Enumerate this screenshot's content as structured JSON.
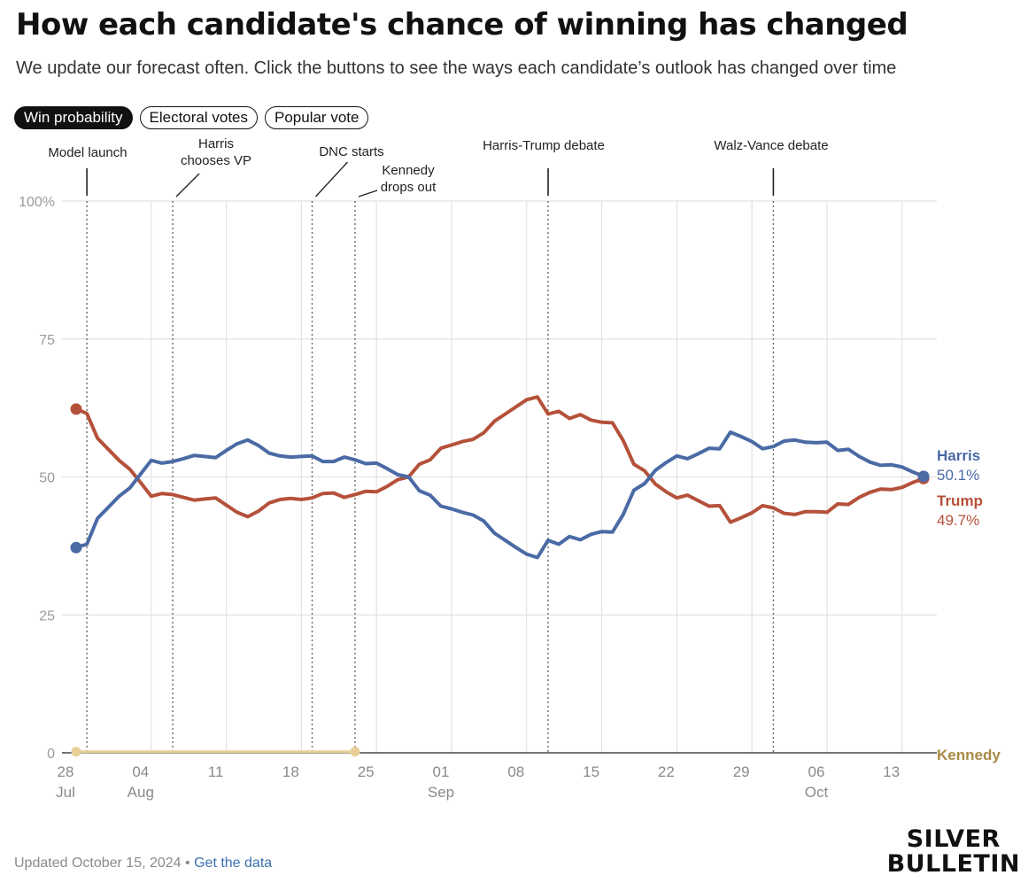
{
  "title": "How each candidate's chance of winning has changed",
  "subtitle": "We update our forecast often. Click the buttons to see the ways each candidate’s outlook has changed over time",
  "tabs": [
    {
      "label": "Win probability",
      "active": true
    },
    {
      "label": "Electoral votes",
      "active": false
    },
    {
      "label": "Popular vote",
      "active": false
    }
  ],
  "footer": {
    "updated": "Updated October 15, 2024",
    "separator": "•",
    "link": "Get the data"
  },
  "brand": {
    "line1": "SILVER",
    "line2": "BULLETIN"
  },
  "colors": {
    "harris": "#4a6aa5",
    "trump": "#b5513a",
    "kennedy": "#a88a45",
    "kennedy_line": "#e9cf96",
    "grid": "#e2e2e2",
    "axis_text": "#9a9a9a"
  },
  "chart_data": {
    "type": "line",
    "x_start": "2024-07-28",
    "x_end": "2024-10-15",
    "ylim": [
      0,
      100
    ],
    "y_ticks": [
      {
        "value": 0,
        "label": "0"
      },
      {
        "value": 25,
        "label": "25"
      },
      {
        "value": 50,
        "label": "50"
      },
      {
        "value": 75,
        "label": "75"
      },
      {
        "value": 100,
        "label": "100%"
      }
    ],
    "x_ticks": [
      {
        "date": "2024-07-28",
        "label": "28",
        "sublabel": "Jul"
      },
      {
        "date": "2024-08-04",
        "label": "04",
        "sublabel": "Aug"
      },
      {
        "date": "2024-08-11",
        "label": "11",
        "sublabel": ""
      },
      {
        "date": "2024-08-18",
        "label": "18",
        "sublabel": ""
      },
      {
        "date": "2024-08-25",
        "label": "25",
        "sublabel": ""
      },
      {
        "date": "2024-09-01",
        "label": "01",
        "sublabel": "Sep"
      },
      {
        "date": "2024-09-08",
        "label": "08",
        "sublabel": ""
      },
      {
        "date": "2024-09-15",
        "label": "15",
        "sublabel": ""
      },
      {
        "date": "2024-09-22",
        "label": "22",
        "sublabel": ""
      },
      {
        "date": "2024-09-29",
        "label": "29",
        "sublabel": ""
      },
      {
        "date": "2024-10-06",
        "label": "06",
        "sublabel": "Oct"
      },
      {
        "date": "2024-10-13",
        "label": "13",
        "sublabel": ""
      }
    ],
    "events": [
      {
        "date": "2024-07-29",
        "label": [
          "Model launch"
        ]
      },
      {
        "date": "2024-08-06",
        "label": [
          "Harris",
          "chooses VP"
        ]
      },
      {
        "date": "2024-08-19",
        "label": [
          "DNC starts"
        ]
      },
      {
        "date": "2024-08-23",
        "label": [
          "Kennedy",
          "drops out"
        ]
      },
      {
        "date": "2024-09-10",
        "label": [
          "Harris-Trump debate"
        ]
      },
      {
        "date": "2024-10-01",
        "label": [
          "Walz-Vance debate"
        ]
      }
    ],
    "series": [
      {
        "name": "Harris",
        "end_label": "50.1%",
        "points": [
          [
            "2024-07-28",
            37.2
          ],
          [
            "2024-07-29",
            37.8
          ],
          [
            "2024-07-30",
            42.5
          ],
          [
            "2024-07-31",
            44.5
          ],
          [
            "2024-08-01",
            46.5
          ],
          [
            "2024-08-02",
            48.0
          ],
          [
            "2024-08-03",
            50.5
          ],
          [
            "2024-08-04",
            53.0
          ],
          [
            "2024-08-05",
            52.5
          ],
          [
            "2024-08-06",
            52.8
          ],
          [
            "2024-08-07",
            53.3
          ],
          [
            "2024-08-08",
            53.9
          ],
          [
            "2024-08-09",
            53.7
          ],
          [
            "2024-08-10",
            53.5
          ],
          [
            "2024-08-11",
            54.8
          ],
          [
            "2024-08-12",
            56.0
          ],
          [
            "2024-08-13",
            56.7
          ],
          [
            "2024-08-14",
            55.7
          ],
          [
            "2024-08-15",
            54.3
          ],
          [
            "2024-08-16",
            53.8
          ],
          [
            "2024-08-17",
            53.6
          ],
          [
            "2024-08-18",
            53.7
          ],
          [
            "2024-08-19",
            53.8
          ],
          [
            "2024-08-20",
            52.8
          ],
          [
            "2024-08-21",
            52.8
          ],
          [
            "2024-08-22",
            53.6
          ],
          [
            "2024-08-23",
            53.1
          ],
          [
            "2024-08-24",
            52.4
          ],
          [
            "2024-08-25",
            52.5
          ],
          [
            "2024-08-26",
            51.5
          ],
          [
            "2024-08-27",
            50.4
          ],
          [
            "2024-08-28",
            50.0
          ],
          [
            "2024-08-29",
            47.5
          ],
          [
            "2024-08-30",
            46.7
          ],
          [
            "2024-08-31",
            44.7
          ],
          [
            "2024-09-01",
            44.2
          ],
          [
            "2024-09-02",
            43.6
          ],
          [
            "2024-09-03",
            43.1
          ],
          [
            "2024-09-04",
            42.0
          ],
          [
            "2024-09-05",
            39.8
          ],
          [
            "2024-09-06",
            38.5
          ],
          [
            "2024-09-07",
            37.2
          ],
          [
            "2024-09-08",
            36.0
          ],
          [
            "2024-09-09",
            35.4
          ],
          [
            "2024-09-10",
            38.5
          ],
          [
            "2024-09-11",
            37.8
          ],
          [
            "2024-09-12",
            39.2
          ],
          [
            "2024-09-13",
            38.6
          ],
          [
            "2024-09-14",
            39.6
          ],
          [
            "2024-09-15",
            40.1
          ],
          [
            "2024-09-16",
            40.0
          ],
          [
            "2024-09-17",
            43.2
          ],
          [
            "2024-09-18",
            47.6
          ],
          [
            "2024-09-19",
            48.8
          ],
          [
            "2024-09-20",
            51.2
          ],
          [
            "2024-09-21",
            52.6
          ],
          [
            "2024-09-22",
            53.8
          ],
          [
            "2024-09-23",
            53.3
          ],
          [
            "2024-09-24",
            54.2
          ],
          [
            "2024-09-25",
            55.2
          ],
          [
            "2024-09-26",
            55.1
          ],
          [
            "2024-09-27",
            58.1
          ],
          [
            "2024-09-28",
            57.3
          ],
          [
            "2024-09-29",
            56.4
          ],
          [
            "2024-09-30",
            55.1
          ],
          [
            "2024-10-01",
            55.5
          ],
          [
            "2024-10-02",
            56.5
          ],
          [
            "2024-10-03",
            56.7
          ],
          [
            "2024-10-04",
            56.3
          ],
          [
            "2024-10-05",
            56.2
          ],
          [
            "2024-10-06",
            56.3
          ],
          [
            "2024-10-07",
            54.8
          ],
          [
            "2024-10-08",
            55.0
          ],
          [
            "2024-10-09",
            53.7
          ],
          [
            "2024-10-10",
            52.7
          ],
          [
            "2024-10-11",
            52.1
          ],
          [
            "2024-10-12",
            52.2
          ],
          [
            "2024-10-13",
            51.8
          ],
          [
            "2024-10-14",
            50.9
          ],
          [
            "2024-10-15",
            50.1
          ]
        ]
      },
      {
        "name": "Trump",
        "end_label": "49.7%",
        "points": [
          [
            "2024-07-28",
            62.3
          ],
          [
            "2024-07-29",
            61.5
          ],
          [
            "2024-07-30",
            57.0
          ],
          [
            "2024-07-31",
            55.0
          ],
          [
            "2024-08-01",
            53.0
          ],
          [
            "2024-08-02",
            51.4
          ],
          [
            "2024-08-03",
            49.0
          ],
          [
            "2024-08-04",
            46.5
          ],
          [
            "2024-08-05",
            47.0
          ],
          [
            "2024-08-06",
            46.8
          ],
          [
            "2024-08-07",
            46.3
          ],
          [
            "2024-08-08",
            45.8
          ],
          [
            "2024-08-09",
            46.0
          ],
          [
            "2024-08-10",
            46.2
          ],
          [
            "2024-08-11",
            44.9
          ],
          [
            "2024-08-12",
            43.6
          ],
          [
            "2024-08-13",
            42.8
          ],
          [
            "2024-08-14",
            43.8
          ],
          [
            "2024-08-15",
            45.3
          ],
          [
            "2024-08-16",
            45.9
          ],
          [
            "2024-08-17",
            46.1
          ],
          [
            "2024-08-18",
            45.9
          ],
          [
            "2024-08-19",
            46.2
          ],
          [
            "2024-08-20",
            47.0
          ],
          [
            "2024-08-21",
            47.1
          ],
          [
            "2024-08-22",
            46.3
          ],
          [
            "2024-08-23",
            46.8
          ],
          [
            "2024-08-24",
            47.4
          ],
          [
            "2024-08-25",
            47.3
          ],
          [
            "2024-08-26",
            48.3
          ],
          [
            "2024-08-27",
            49.5
          ],
          [
            "2024-08-28",
            50.0
          ],
          [
            "2024-08-29",
            52.3
          ],
          [
            "2024-08-30",
            53.1
          ],
          [
            "2024-08-31",
            55.2
          ],
          [
            "2024-09-01",
            55.8
          ],
          [
            "2024-09-02",
            56.4
          ],
          [
            "2024-09-03",
            56.8
          ],
          [
            "2024-09-04",
            58.0
          ],
          [
            "2024-09-05",
            60.1
          ],
          [
            "2024-09-06",
            61.4
          ],
          [
            "2024-09-07",
            62.7
          ],
          [
            "2024-09-08",
            64.0
          ],
          [
            "2024-09-09",
            64.5
          ],
          [
            "2024-09-10",
            61.4
          ],
          [
            "2024-09-11",
            61.9
          ],
          [
            "2024-09-12",
            60.6
          ],
          [
            "2024-09-13",
            61.3
          ],
          [
            "2024-09-14",
            60.3
          ],
          [
            "2024-09-15",
            59.9
          ],
          [
            "2024-09-16",
            59.8
          ],
          [
            "2024-09-17",
            56.6
          ],
          [
            "2024-09-18",
            52.3
          ],
          [
            "2024-09-19",
            51.1
          ],
          [
            "2024-09-20",
            48.7
          ],
          [
            "2024-09-21",
            47.3
          ],
          [
            "2024-09-22",
            46.2
          ],
          [
            "2024-09-23",
            46.7
          ],
          [
            "2024-09-24",
            45.7
          ],
          [
            "2024-09-25",
            44.7
          ],
          [
            "2024-09-26",
            44.8
          ],
          [
            "2024-09-27",
            41.8
          ],
          [
            "2024-09-28",
            42.6
          ],
          [
            "2024-09-29",
            43.5
          ],
          [
            "2024-09-30",
            44.8
          ],
          [
            "2024-10-01",
            44.4
          ],
          [
            "2024-10-02",
            43.4
          ],
          [
            "2024-10-03",
            43.2
          ],
          [
            "2024-10-04",
            43.7
          ],
          [
            "2024-10-05",
            43.7
          ],
          [
            "2024-10-06",
            43.6
          ],
          [
            "2024-10-07",
            45.1
          ],
          [
            "2024-10-08",
            45.0
          ],
          [
            "2024-10-09",
            46.3
          ],
          [
            "2024-10-10",
            47.2
          ],
          [
            "2024-10-11",
            47.8
          ],
          [
            "2024-10-12",
            47.7
          ],
          [
            "2024-10-13",
            48.1
          ],
          [
            "2024-10-14",
            49.0
          ],
          [
            "2024-10-15",
            49.7
          ]
        ]
      },
      {
        "name": "Kennedy",
        "end_label": "",
        "points": [
          [
            "2024-07-28",
            0.2
          ],
          [
            "2024-08-23",
            0.2
          ]
        ]
      }
    ]
  }
}
